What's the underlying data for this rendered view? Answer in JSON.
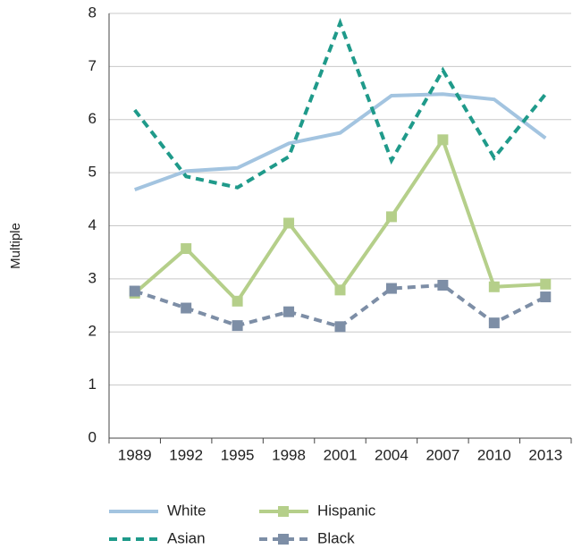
{
  "chart_data": {
    "type": "line",
    "y_label": "Multiple",
    "categories": [
      "1989",
      "1992",
      "1995",
      "1998",
      "2001",
      "2004",
      "2007",
      "2010",
      "2013"
    ],
    "series": [
      {
        "name": "White",
        "color": "#a3c4e0",
        "dashed": false,
        "marker": "none",
        "values": [
          4.68,
          5.03,
          5.09,
          5.55,
          5.75,
          6.45,
          6.48,
          6.38,
          5.65
        ]
      },
      {
        "name": "Hispanic",
        "color": "#b5cf8a",
        "dashed": false,
        "marker": "square",
        "values": [
          2.73,
          3.57,
          2.58,
          4.05,
          2.79,
          4.17,
          5.62,
          2.85,
          2.9
        ]
      },
      {
        "name": "Asian",
        "color": "#1f9a8a",
        "dashed": true,
        "marker": "none",
        "values": [
          6.18,
          4.93,
          4.72,
          5.3,
          7.82,
          5.23,
          6.93,
          5.28,
          6.48
        ]
      },
      {
        "name": "Black",
        "color": "#7d8ea6",
        "dashed": true,
        "marker": "square",
        "values": [
          2.77,
          2.45,
          2.12,
          2.38,
          2.1,
          2.82,
          2.88,
          2.17,
          2.66
        ]
      }
    ],
    "ylim": [
      0,
      8
    ],
    "yticks": [
      0,
      1,
      2,
      3,
      4,
      5,
      6,
      7,
      8
    ],
    "grid": true
  }
}
